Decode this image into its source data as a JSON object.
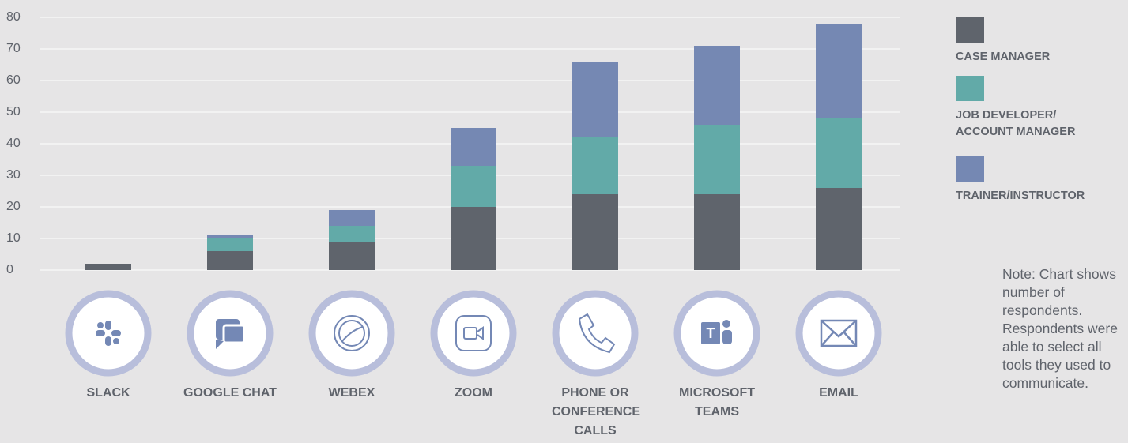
{
  "chart_data": {
    "type": "stacked_bar",
    "categories": [
      "SLACK",
      "GOOGLE CHAT",
      "WEBEX",
      "ZOOM",
      "PHONE OR CONFERENCE CALLS",
      "MICROSOFT TEAMS",
      "EMAIL"
    ],
    "series": [
      {
        "name": "CASE MANAGER",
        "color": "#5f646c",
        "values": [
          2,
          6,
          9,
          20,
          24,
          24,
          26
        ]
      },
      {
        "name": "JOB DEVELOPER/ ACCOUNT MANAGER",
        "color": "#62aaa8",
        "values": [
          0,
          4,
          5,
          13,
          18,
          22,
          22
        ]
      },
      {
        "name": "TRAINER/INSTRUCTOR",
        "color": "#7588b3",
        "values": [
          0,
          1,
          5,
          12,
          24,
          25,
          30
        ]
      }
    ],
    "ylim": [
      0,
      80
    ],
    "yticks": [
      0,
      10,
      20,
      30,
      40,
      50,
      60,
      70,
      80
    ],
    "grid": true,
    "legend": "right",
    "note": "Note: Chart shows number of respondents. Respondents were able to select all tools they used to communicate."
  }
}
